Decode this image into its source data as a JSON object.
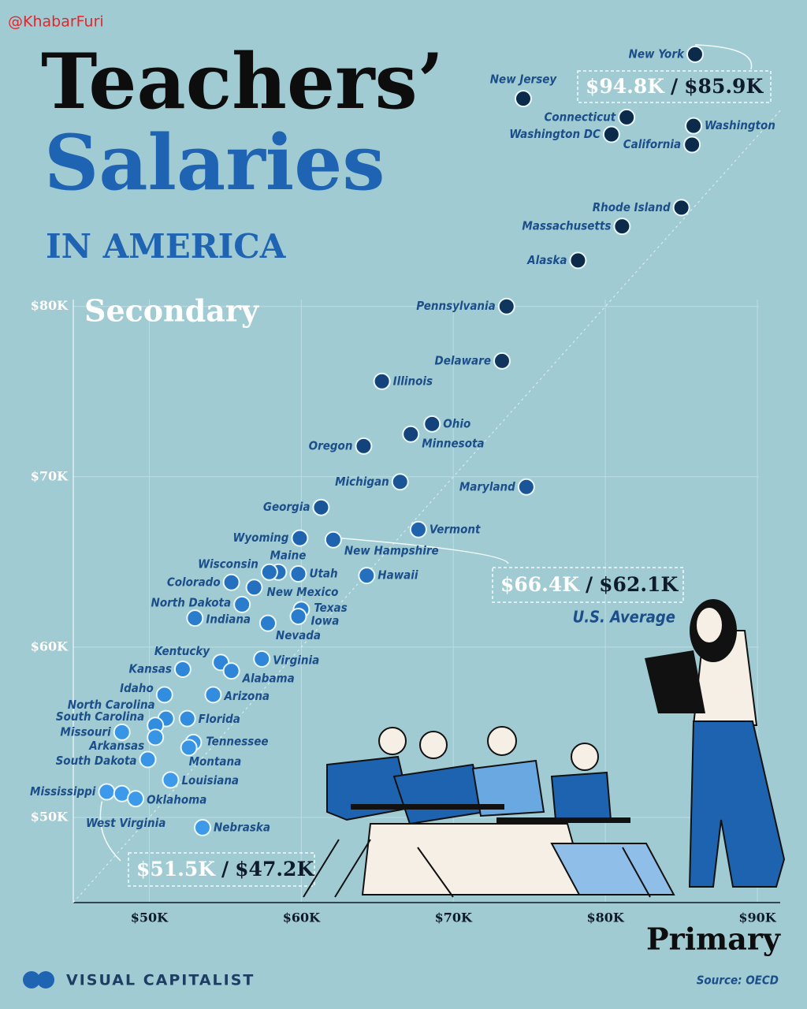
{
  "watermark": "@KhabarFuri",
  "chart_data": {
    "type": "scatter",
    "title": "Teachers’",
    "title2": "Salaries",
    "subtitle": "IN AMERICA",
    "xlabel": "Primary",
    "ylabel": "Secondary",
    "source": "Source: OECD",
    "brand": "VISUAL CAPITALIST",
    "xlim": [
      45,
      91.5
    ],
    "ylim": [
      45,
      96
    ],
    "xticks": [
      {
        "value": 50,
        "label": "$50K"
      },
      {
        "value": 60,
        "label": "$60K"
      },
      {
        "value": 70,
        "label": "$70K"
      },
      {
        "value": 80,
        "label": "$80K"
      },
      {
        "value": 90,
        "label": "$90K"
      }
    ],
    "yticks": [
      {
        "value": 50,
        "label": "$50K"
      },
      {
        "value": 60,
        "label": "$60K"
      },
      {
        "value": 70,
        "label": "$70K"
      },
      {
        "value": 80,
        "label": "$80K"
      }
    ],
    "grid": true,
    "separator": "/",
    "points": [
      {
        "label": "New York",
        "x": 85.9,
        "y": 94.8,
        "color": "#0c2b4a"
      },
      {
        "label": "New Jersey",
        "x": 74.6,
        "y": 92.2,
        "color": "#0c2b4a"
      },
      {
        "label": "Connecticut",
        "x": 81.4,
        "y": 91.1,
        "color": "#0c2b4a"
      },
      {
        "label": "Washington DC",
        "x": 80.4,
        "y": 90.1,
        "color": "#0c2b4a"
      },
      {
        "label": "Washington",
        "x": 85.8,
        "y": 90.6,
        "color": "#0c2b4a"
      },
      {
        "label": "California",
        "x": 85.7,
        "y": 89.5,
        "color": "#0c2b4a"
      },
      {
        "label": "Rhode Island",
        "x": 85.0,
        "y": 85.8,
        "color": "#0c2b4a"
      },
      {
        "label": "Massachusetts",
        "x": 81.1,
        "y": 84.7,
        "color": "#0c2b4a"
      },
      {
        "label": "Alaska",
        "x": 78.2,
        "y": 82.7,
        "color": "#0c2b4a"
      },
      {
        "label": "Pennsylvania",
        "x": 73.5,
        "y": 80.0,
        "color": "#10365d"
      },
      {
        "label": "Delaware",
        "x": 73.2,
        "y": 76.8,
        "color": "#10365d"
      },
      {
        "label": "Illinois",
        "x": 65.3,
        "y": 75.6,
        "color": "#14427a"
      },
      {
        "label": "Ohio",
        "x": 68.6,
        "y": 73.1,
        "color": "#14427a"
      },
      {
        "label": "Minnesota",
        "x": 67.2,
        "y": 72.5,
        "color": "#14427a"
      },
      {
        "label": "Oregon",
        "x": 64.1,
        "y": 71.8,
        "color": "#14427a"
      },
      {
        "label": "Michigan",
        "x": 66.5,
        "y": 69.7,
        "color": "#1a5597"
      },
      {
        "label": "Maryland",
        "x": 74.8,
        "y": 69.4,
        "color": "#1a5597"
      },
      {
        "label": "Georgia",
        "x": 61.3,
        "y": 68.2,
        "color": "#1a5597"
      },
      {
        "label": "Vermont",
        "x": 67.7,
        "y": 66.9,
        "color": "#1f62ad"
      },
      {
        "label": "Wyoming",
        "x": 59.9,
        "y": 66.4,
        "color": "#1f62ad"
      },
      {
        "label": "New Hampshire",
        "x": 62.1,
        "y": 66.3,
        "color": "#1f62ad"
      },
      {
        "label": "Maine",
        "x": 58.5,
        "y": 64.4,
        "color": "#2470be"
      },
      {
        "label": "Wisconsin",
        "x": 57.9,
        "y": 64.4,
        "color": "#2470be"
      },
      {
        "label": "Utah",
        "x": 59.8,
        "y": 64.3,
        "color": "#2470be"
      },
      {
        "label": "Colorado",
        "x": 55.4,
        "y": 63.8,
        "color": "#2470be"
      },
      {
        "label": "New Mexico",
        "x": 56.9,
        "y": 63.5,
        "color": "#2470be"
      },
      {
        "label": "Hawaii",
        "x": 64.3,
        "y": 64.2,
        "color": "#2470be"
      },
      {
        "label": "North Dakota",
        "x": 56.1,
        "y": 62.5,
        "color": "#2a7ccc"
      },
      {
        "label": "Texas",
        "x": 60.0,
        "y": 62.2,
        "color": "#2a7ccc"
      },
      {
        "label": "Iowa",
        "x": 59.8,
        "y": 61.8,
        "color": "#2a7ccc"
      },
      {
        "label": "Indiana",
        "x": 53.0,
        "y": 61.7,
        "color": "#2a7ccc"
      },
      {
        "label": "Nevada",
        "x": 57.8,
        "y": 61.4,
        "color": "#2a7ccc"
      },
      {
        "label": "Kentucky",
        "x": 54.7,
        "y": 59.1,
        "color": "#2f86d8"
      },
      {
        "label": "Kansas",
        "x": 52.2,
        "y": 58.7,
        "color": "#2f86d8"
      },
      {
        "label": "Alabama",
        "x": 55.4,
        "y": 58.6,
        "color": "#2f86d8"
      },
      {
        "label": "Virginia",
        "x": 57.4,
        "y": 59.3,
        "color": "#2f86d8"
      },
      {
        "label": "Idaho",
        "x": 51.0,
        "y": 57.2,
        "color": "#338ddf"
      },
      {
        "label": "Arizona",
        "x": 54.2,
        "y": 57.2,
        "color": "#338ddf"
      },
      {
        "label": "North Carolina",
        "x": 51.1,
        "y": 55.8,
        "color": "#338ddf"
      },
      {
        "label": "Florida",
        "x": 52.5,
        "y": 55.8,
        "color": "#338ddf"
      },
      {
        "label": "South Carolina",
        "x": 50.4,
        "y": 55.4,
        "color": "#338ddf"
      },
      {
        "label": "Missouri",
        "x": 48.2,
        "y": 55.0,
        "color": "#3894e5"
      },
      {
        "label": "Arkansas",
        "x": 50.4,
        "y": 54.7,
        "color": "#3894e5"
      },
      {
        "label": "Tennessee",
        "x": 52.9,
        "y": 54.4,
        "color": "#3894e5"
      },
      {
        "label": "South Dakota",
        "x": 49.9,
        "y": 53.4,
        "color": "#3894e5"
      },
      {
        "label": "Montana",
        "x": 52.6,
        "y": 54.1,
        "color": "#3894e5"
      },
      {
        "label": "Louisiana",
        "x": 51.4,
        "y": 52.2,
        "color": "#3d9aea"
      },
      {
        "label": "Mississippi",
        "x": 47.2,
        "y": 51.5,
        "color": "#3d9aea"
      },
      {
        "label": "West Virginia",
        "x": 48.2,
        "y": 51.4,
        "color": "#3d9aea"
      },
      {
        "label": "Oklahoma",
        "x": 49.1,
        "y": 51.1,
        "color": "#3d9aea"
      },
      {
        "label": "Nebraska",
        "x": 53.5,
        "y": 49.4,
        "color": "#3d9aea"
      }
    ],
    "annotations": [
      {
        "values": [
          94.8,
          85.9
        ],
        "value_labels": [
          "$94.8K",
          "$85.9K"
        ]
      },
      {
        "values": [
          66.4,
          62.1
        ],
        "value_labels": [
          "$66.4K",
          "$62.1K"
        ],
        "text": "U.S. Average"
      },
      {
        "values": [
          51.5,
          47.2
        ],
        "value_labels": [
          "$51.5K",
          "$47.2K"
        ]
      }
    ]
  }
}
